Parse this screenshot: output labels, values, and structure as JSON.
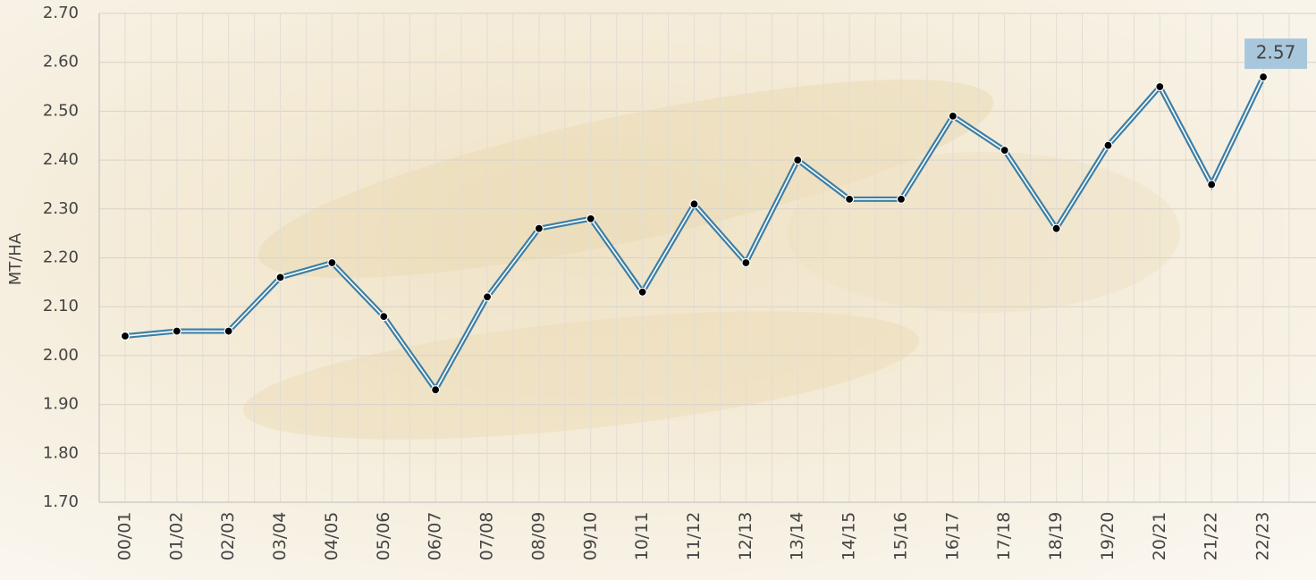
{
  "chart_data": {
    "type": "line",
    "y_label": "MT/HA",
    "categories": [
      "00/01",
      "01/02",
      "02/03",
      "03/04",
      "04/05",
      "05/06",
      "06/07",
      "07/08",
      "08/09",
      "09/10",
      "10/11",
      "11/12",
      "12/13",
      "13/14",
      "14/15",
      "15/16",
      "16/17",
      "17/18",
      "18/19",
      "19/20",
      "20/21",
      "21/22",
      "22/23"
    ],
    "series": [
      {
        "color": "#3d7fa6",
        "values": [
          2.04,
          2.05,
          2.05,
          2.16,
          2.19,
          2.08,
          1.93,
          2.12,
          2.26,
          2.28,
          2.13,
          2.31,
          2.19,
          2.4,
          2.32,
          2.32,
          2.49,
          2.42,
          2.26,
          2.43,
          2.55,
          2.35,
          2.57
        ],
        "value_labels": [
          null,
          null,
          null,
          null,
          null,
          null,
          null,
          null,
          null,
          null,
          null,
          null,
          null,
          null,
          null,
          null,
          null,
          null,
          null,
          null,
          null,
          null,
          "2.57"
        ]
      }
    ],
    "ylim": [
      1.7,
      2.7
    ],
    "yticks": [
      {
        "value": 1.7,
        "label": "1.70"
      },
      {
        "value": 1.8,
        "label": "1.80"
      },
      {
        "value": 1.9,
        "label": "1.90"
      },
      {
        "value": 2.0,
        "label": "2.00"
      },
      {
        "value": 2.1,
        "label": "2.10"
      },
      {
        "value": 2.2,
        "label": "2.20"
      },
      {
        "value": 2.3,
        "label": "2.30"
      },
      {
        "value": 2.4,
        "label": "2.40"
      },
      {
        "value": 2.5,
        "label": "2.50"
      },
      {
        "value": 2.6,
        "label": "2.60"
      },
      {
        "value": 2.7,
        "label": "2.70"
      }
    ],
    "grid": true
  }
}
